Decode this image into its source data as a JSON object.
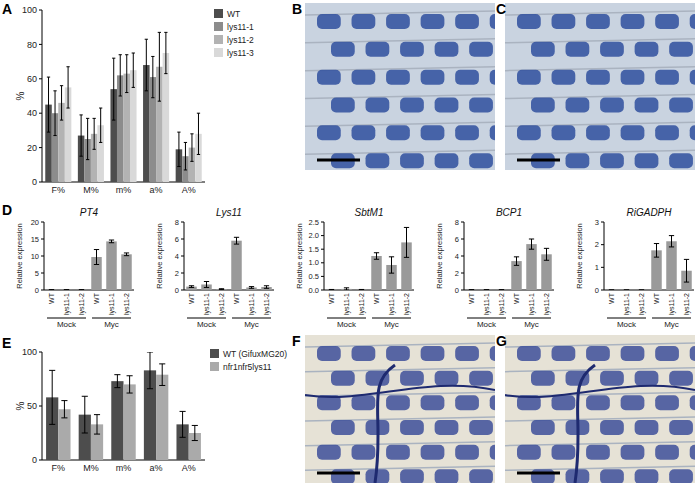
{
  "panel_labels": [
    "A",
    "B",
    "C",
    "D",
    "E",
    "F",
    "G"
  ],
  "chart_data": [
    {
      "type": "bar",
      "y_label": "%",
      "categories": [
        "F%",
        "M%",
        "m%",
        "a%",
        "A%"
      ],
      "ylim": [
        0,
        100
      ],
      "yticks": [
        0,
        20,
        40,
        60,
        80,
        100
      ],
      "legend": "right",
      "series": [
        {
          "name": "WT",
          "color": "#4d4d4d",
          "values": [
            45,
            27,
            54,
            68,
            19
          ],
          "errors": [
            16,
            12,
            18,
            15,
            10
          ]
        },
        {
          "name": "lys11-1",
          "color": "#8c8c8c",
          "values": [
            40,
            25,
            62,
            61,
            15
          ],
          "errors": [
            13,
            12,
            12,
            12,
            8
          ]
        },
        {
          "name": "lys11-2",
          "color": "#b3b3b3",
          "values": [
            46,
            28,
            63,
            67,
            20
          ],
          "errors": [
            10,
            9,
            11,
            20,
            8
          ]
        },
        {
          "name": "lys11-3",
          "color": "#d9d9d9",
          "values": [
            55,
            33,
            65,
            75,
            28
          ],
          "errors": [
            12,
            10,
            10,
            12,
            12
          ]
        }
      ]
    },
    {
      "type": "bar",
      "title": "PT4",
      "y_label": "Relative expression",
      "categories": [
        "WT",
        "lys11-1",
        "lys11-2",
        "WT",
        "lys11-1",
        "lys11-2"
      ],
      "annotations": [
        "Mock",
        "Myc"
      ],
      "ylim": [
        0,
        20
      ],
      "yticks": [
        0,
        5,
        10,
        15,
        20
      ],
      "color": "#9a9a9a",
      "values": [
        0.05,
        0.05,
        0.05,
        9.7,
        14.3,
        10.5
      ],
      "errors": [
        0.05,
        0.05,
        0.05,
        2.2,
        0.4,
        0.4
      ]
    },
    {
      "type": "bar",
      "title": "Lys11",
      "y_label": "Relative expression",
      "categories": [
        "WT",
        "lys11-1",
        "lys11-2",
        "WT",
        "lys11-1",
        "lys11-2"
      ],
      "annotations": [
        "Mock",
        "Myc"
      ],
      "ylim": [
        0,
        8
      ],
      "yticks": [
        0,
        2,
        4,
        6,
        8
      ],
      "color": "#9a9a9a",
      "values": [
        0.4,
        0.65,
        0.1,
        5.8,
        0.3,
        0.35
      ],
      "errors": [
        0.1,
        0.35,
        0.05,
        0.4,
        0.1,
        0.15
      ]
    },
    {
      "type": "bar",
      "title": "SbtM1",
      "y_label": "Relative expression",
      "categories": [
        "WT",
        "lys11-1",
        "lys11-2",
        "WT",
        "lys11-1",
        "lys11-2"
      ],
      "annotations": [
        "Mock",
        "Myc"
      ],
      "ylim": [
        0,
        2.5
      ],
      "yticks": [
        {
          "value": 0,
          "label": "0.0"
        },
        0.5,
        {
          "value": 1,
          "label": "1.0"
        },
        1.5,
        {
          "value": 2,
          "label": "2.0"
        },
        2.5
      ],
      "color": "#9a9a9a",
      "values": [
        0.01,
        0.04,
        0.01,
        1.25,
        0.92,
        1.75
      ],
      "errors": [
        0.01,
        0.04,
        0.01,
        0.12,
        0.3,
        0.55
      ]
    },
    {
      "type": "bar",
      "title": "BCP1",
      "y_label": "Relative expression",
      "categories": [
        "WT",
        "lys11-1",
        "lys11-2",
        "WT",
        "lys11-1",
        "lys11-2"
      ],
      "annotations": [
        "Mock",
        "Myc"
      ],
      "ylim": [
        0,
        8
      ],
      "yticks": [
        0,
        2,
        4,
        6,
        8
      ],
      "color": "#9a9a9a",
      "values": [
        0.02,
        0.02,
        0.02,
        3.4,
        5.4,
        4.2
      ],
      "errors": [
        0.01,
        0.01,
        0.01,
        0.5,
        0.6,
        0.7
      ]
    },
    {
      "type": "bar",
      "title": "RiGADPH",
      "y_label": "Relative expression",
      "categories": [
        "WT",
        "lys11-1",
        "lys11-2",
        "WT",
        "lys11-1",
        "lys11-2"
      ],
      "annotations": [
        "Mock",
        "Myc"
      ],
      "ylim": [
        0,
        3
      ],
      "yticks": [
        0,
        1,
        2,
        3
      ],
      "color": "#9a9a9a",
      "values": [
        0,
        0,
        0,
        1.75,
        2.15,
        0.85
      ],
      "errors": [
        0,
        0,
        0,
        0.3,
        0.25,
        0.5
      ]
    },
    {
      "type": "bar",
      "y_label": "%",
      "categories": [
        "F%",
        "M%",
        "m%",
        "a%",
        "A%"
      ],
      "ylim": [
        0,
        100
      ],
      "yticks": [
        0,
        50,
        100
      ],
      "legend": "top-right",
      "series": [
        {
          "name": "WT (GifuxMG20)",
          "color": "#4d4d4d",
          "values": [
            58,
            42,
            73,
            83,
            33
          ],
          "errors": [
            25,
            17,
            6,
            17,
            12
          ]
        },
        {
          "name": "nfr1nfr5lys11",
          "color": "#aaaaaa",
          "values": [
            47,
            33,
            70,
            79,
            25
          ],
          "errors": [
            8,
            9,
            8,
            10,
            7
          ]
        }
      ]
    }
  ]
}
